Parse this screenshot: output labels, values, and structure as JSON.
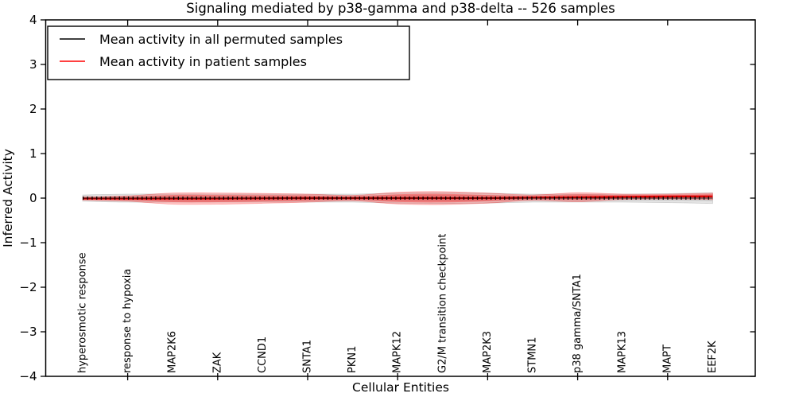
{
  "chart_data": {
    "type": "violin",
    "title": "Signaling mediated by p38-gamma and p38-delta -- 526 samples",
    "xlabel": "Cellular Entities",
    "ylabel": "Inferred Activity",
    "ylim": [
      -4,
      4
    ],
    "yticks": [
      4,
      3,
      2,
      1,
      0,
      -1,
      -2,
      -3,
      -4
    ],
    "grid": false,
    "legend_position": "upper-left",
    "categories": [
      "hyperosmotic response",
      "response to hypoxia",
      "MAP2K6",
      "ZAK",
      "CCND1",
      "SNTA1",
      "PKN1",
      "MAPK12",
      "G2/M transition checkpoint",
      "MAP2K3",
      "STMN1",
      "p38 gamma/SNTA1",
      "MAPK13",
      "MAPT",
      "EEF2K"
    ],
    "legend": [
      {
        "label": "Mean activity in all permuted samples",
        "color": "#000000"
      },
      {
        "label": "Mean activity in patient samples",
        "color": "#ff0000"
      }
    ],
    "colors": {
      "permuted_band": "#000000",
      "patient_band": "#ff0000",
      "permuted_mean_line": "#000000",
      "patient_mean_line": "#e00000",
      "frame": "#000000"
    },
    "series": [
      {
        "name": "permuted_mean",
        "values": [
          0,
          0,
          0,
          0,
          0,
          0,
          0,
          0,
          0,
          0,
          0,
          0,
          0,
          0,
          0
        ]
      },
      {
        "name": "patient_mean",
        "values": [
          -0.01,
          -0.01,
          -0.01,
          -0.01,
          -0.005,
          0,
          0,
          0,
          0,
          0,
          0.01,
          0.02,
          0.03,
          0.035,
          0.04
        ]
      },
      {
        "name": "permuted_spread_outer",
        "values": [
          0.07,
          0.09,
          0.09,
          0.09,
          0.09,
          0.09,
          0.09,
          0.11,
          0.12,
          0.11,
          0.09,
          0.09,
          0.09,
          0.1,
          0.12
        ]
      },
      {
        "name": "permuted_spread_inner",
        "values": [
          0.04,
          0.055,
          0.055,
          0.055,
          0.055,
          0.055,
          0.055,
          0.065,
          0.07,
          0.065,
          0.055,
          0.055,
          0.055,
          0.06,
          0.07
        ]
      },
      {
        "name": "patient_spread_outer",
        "values": [
          0.035,
          0.06,
          0.125,
          0.125,
          0.11,
          0.09,
          0.06,
          0.13,
          0.145,
          0.11,
          0.06,
          0.1,
          0.06,
          0.055,
          0.07
        ]
      },
      {
        "name": "patient_spread_inner",
        "values": [
          0.025,
          0.04,
          0.08,
          0.08,
          0.07,
          0.06,
          0.04,
          0.085,
          0.095,
          0.07,
          0.04,
          0.065,
          0.04,
          0.04,
          0.05
        ]
      }
    ]
  }
}
